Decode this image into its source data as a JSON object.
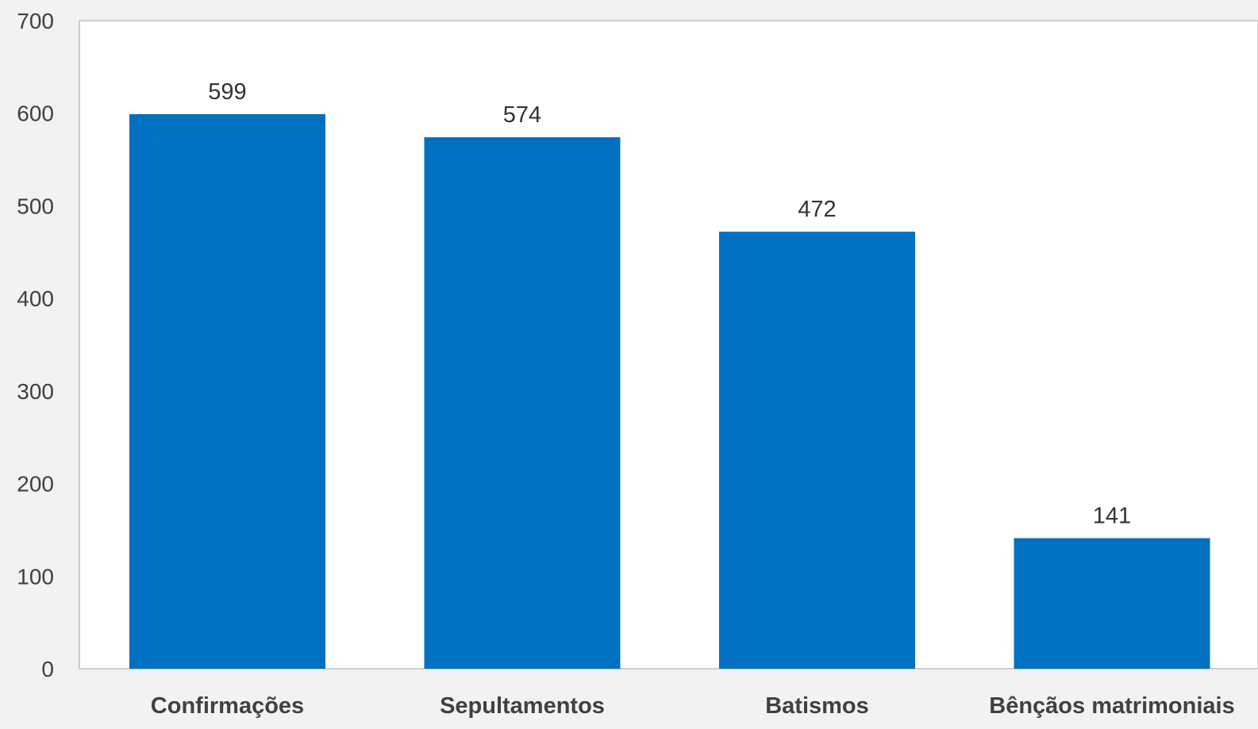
{
  "chart_data": {
    "type": "bar",
    "categories": [
      "Confirmações",
      "Sepultamentos",
      "Batismos",
      "Bênçãos matrimoniais"
    ],
    "values": [
      599,
      574,
      472,
      141
    ],
    "data_labels": [
      "599",
      "574",
      "472",
      "141"
    ],
    "title": "",
    "xlabel": "",
    "ylabel": "",
    "ylim": [
      0,
      700
    ],
    "yticks": [
      0,
      100,
      200,
      300,
      400,
      500,
      600,
      700
    ],
    "ytick_labels": [
      "0",
      "100",
      "200",
      "300",
      "400",
      "500",
      "600",
      "700"
    ],
    "grid": false,
    "legend": "none",
    "colors": {
      "bar": "#0070c0",
      "background": "#f2f2f2",
      "plot_background": "#ffffff",
      "axis": "#bfbfbf"
    }
  }
}
